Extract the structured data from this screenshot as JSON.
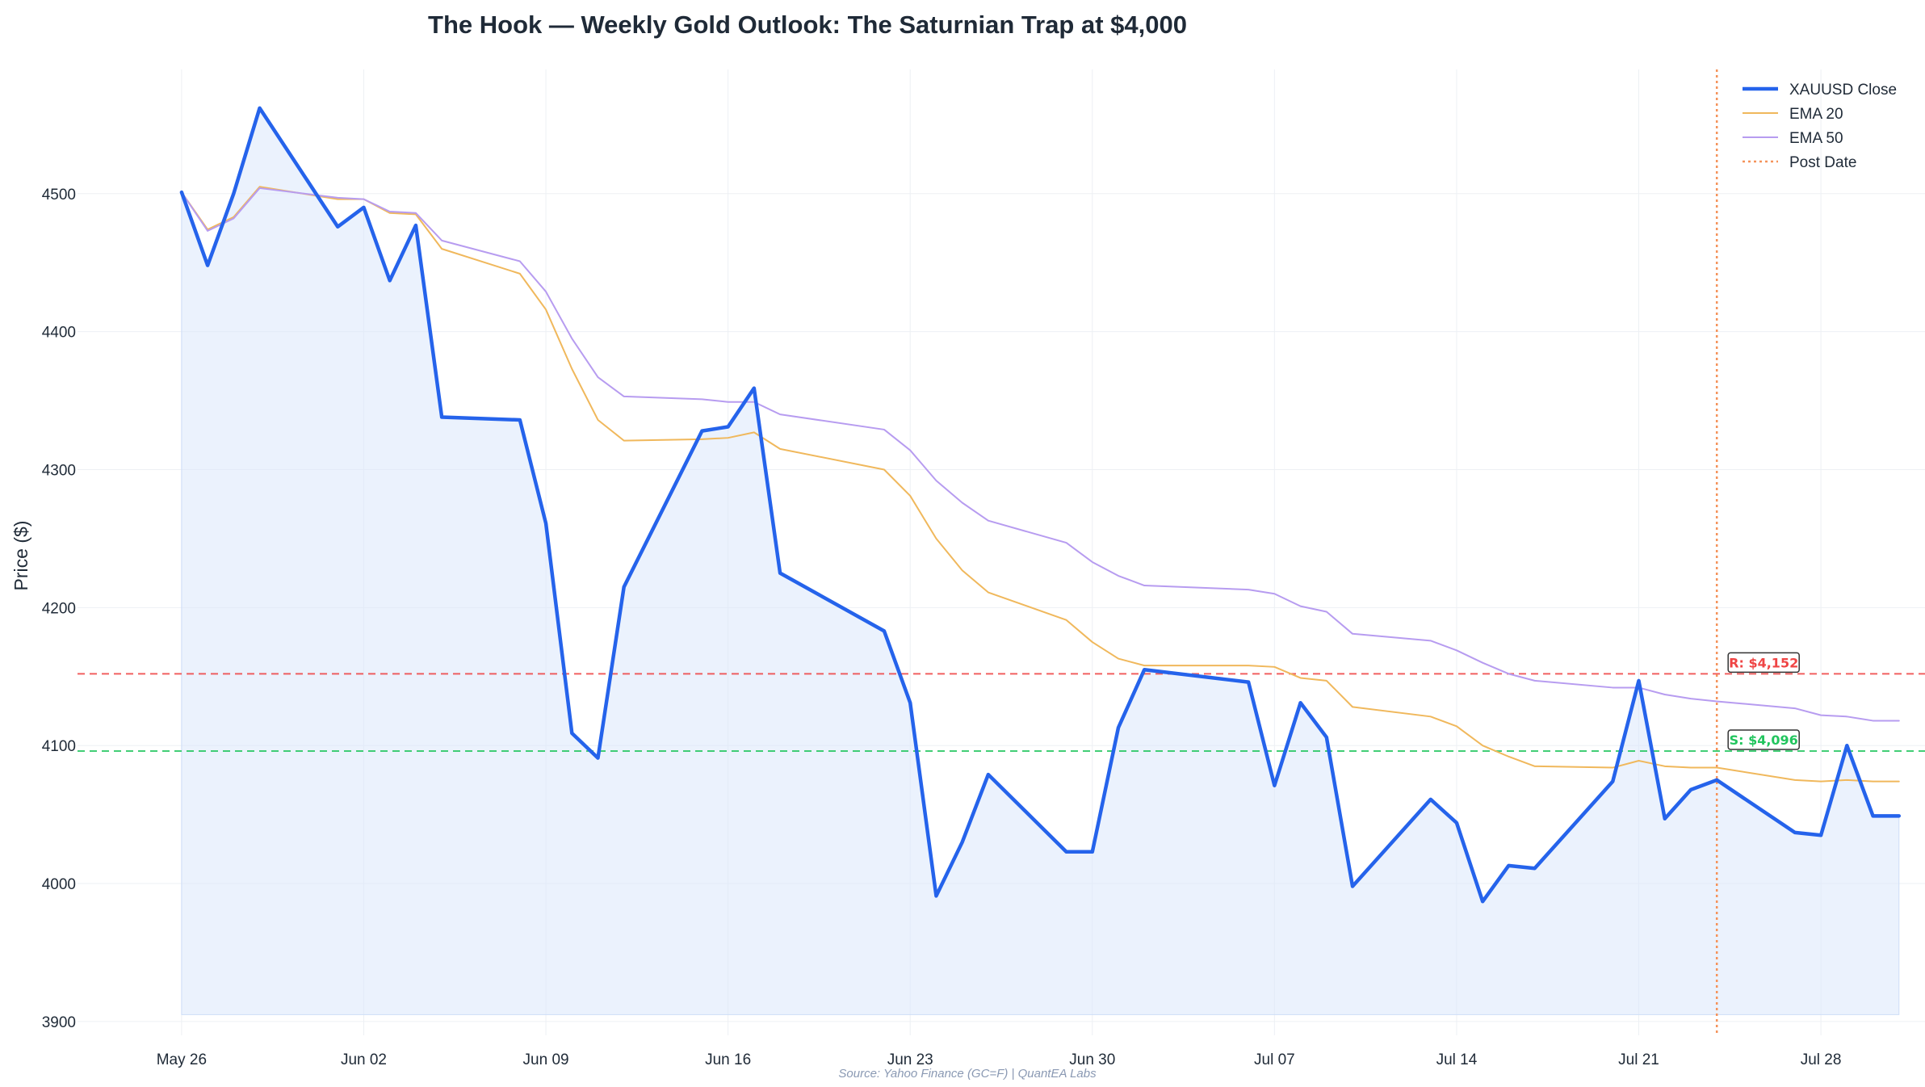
{
  "chart_data": {
    "type": "line",
    "title": "The Hook — Weekly Gold Outlook: The Saturnian Trap at $4,000",
    "xlabel": "",
    "ylabel": "Price ($)",
    "ylim": [
      3890,
      4590
    ],
    "yticks": [
      3900,
      4000,
      4100,
      4200,
      4300,
      4400,
      4500
    ],
    "xlim": [
      "2025-05-22",
      "2025-08-01"
    ],
    "xticks": [
      {
        "date": "2025-05-26",
        "label": "May 26"
      },
      {
        "date": "2025-06-02",
        "label": "Jun 02"
      },
      {
        "date": "2025-06-09",
        "label": "Jun 09"
      },
      {
        "date": "2025-06-16",
        "label": "Jun 16"
      },
      {
        "date": "2025-06-23",
        "label": "Jun 23"
      },
      {
        "date": "2025-06-30",
        "label": "Jun 30"
      },
      {
        "date": "2025-07-07",
        "label": "Jul 07"
      },
      {
        "date": "2025-07-14",
        "label": "Jul 14"
      },
      {
        "date": "2025-07-21",
        "label": "Jul 21"
      },
      {
        "date": "2025-07-28",
        "label": "Jul 28"
      }
    ],
    "grid": true,
    "legend_position": "top-right",
    "fill_baseline": 3905,
    "x": [
      "2025-05-26",
      "2025-05-27",
      "2025-05-28",
      "2025-05-29",
      "2025-06-01",
      "2025-06-02",
      "2025-06-03",
      "2025-06-04",
      "2025-06-05",
      "2025-06-08",
      "2025-06-09",
      "2025-06-10",
      "2025-06-11",
      "2025-06-12",
      "2025-06-15",
      "2025-06-16",
      "2025-06-17",
      "2025-06-18",
      "2025-06-22",
      "2025-06-23",
      "2025-06-24",
      "2025-06-25",
      "2025-06-26",
      "2025-06-29",
      "2025-06-30",
      "2025-07-01",
      "2025-07-02",
      "2025-07-06",
      "2025-07-07",
      "2025-07-08",
      "2025-07-09",
      "2025-07-10",
      "2025-07-13",
      "2025-07-14",
      "2025-07-15",
      "2025-07-16",
      "2025-07-17",
      "2025-07-20",
      "2025-07-21",
      "2025-07-22",
      "2025-07-23",
      "2025-07-24",
      "2025-07-27",
      "2025-07-28",
      "2025-07-29",
      "2025-07-30",
      "2025-07-31"
    ],
    "series": [
      {
        "name": "XAUUSD Close",
        "color": "#2563eb",
        "values": [
          4501,
          4448,
          4500,
          4562,
          4476,
          4490,
          4437,
          4477,
          4338,
          4336,
          4261,
          4109,
          4091,
          4215,
          4328,
          4331,
          4359,
          4225,
          4183,
          4131,
          3991,
          4030,
          4079,
          4023,
          4023,
          4113,
          4155,
          4146,
          4071,
          4131,
          4106,
          3998,
          4061,
          4044,
          3987,
          4013,
          4011,
          4074,
          4147,
          4047,
          4068,
          4075,
          4037,
          4035,
          4100,
          4049,
          4049
        ]
      },
      {
        "name": "EMA 20",
        "color": "#f0b85c",
        "values": [
          4501,
          4474,
          4483,
          4505,
          4496,
          4496,
          4486,
          4485,
          4460,
          4442,
          4416,
          4373,
          4336,
          4321,
          4322,
          4323,
          4327,
          4315,
          4300,
          4281,
          4250,
          4227,
          4211,
          4191,
          4175,
          4163,
          4158,
          4158,
          4157,
          4149,
          4147,
          4128,
          4121,
          4114,
          4100,
          4092,
          4085,
          4084,
          4089,
          4085,
          4084,
          4084,
          4075,
          4074,
          4075,
          4074,
          4074
        ]
      },
      {
        "name": "EMA 50",
        "color": "#b79cf0",
        "values": [
          4501,
          4473,
          4482,
          4504,
          4497,
          4496,
          4487,
          4486,
          4466,
          4451,
          4429,
          4395,
          4367,
          4353,
          4351,
          4349,
          4349,
          4340,
          4329,
          4314,
          4292,
          4276,
          4263,
          4247,
          4233,
          4223,
          4216,
          4213,
          4210,
          4201,
          4197,
          4181,
          4176,
          4169,
          4160,
          4152,
          4147,
          4142,
          4142,
          4137,
          4134,
          4132,
          4127,
          4122,
          4121,
          4118,
          4118
        ]
      }
    ],
    "levels": [
      {
        "name": "resistance",
        "value": 4152,
        "label": "R: $4,152",
        "color": "#ef4444"
      },
      {
        "name": "support",
        "value": 4096,
        "label": "S: $4,096",
        "color": "#22c55e"
      }
    ],
    "post_date": {
      "name": "Post Date",
      "date": "2025-07-24",
      "color": "#f5935b"
    },
    "legend": [
      "XAUUSD Close",
      "EMA 20",
      "EMA 50",
      "Post Date"
    ],
    "source": "Source: Yahoo Finance (GC=F) | QuantEA Labs"
  }
}
